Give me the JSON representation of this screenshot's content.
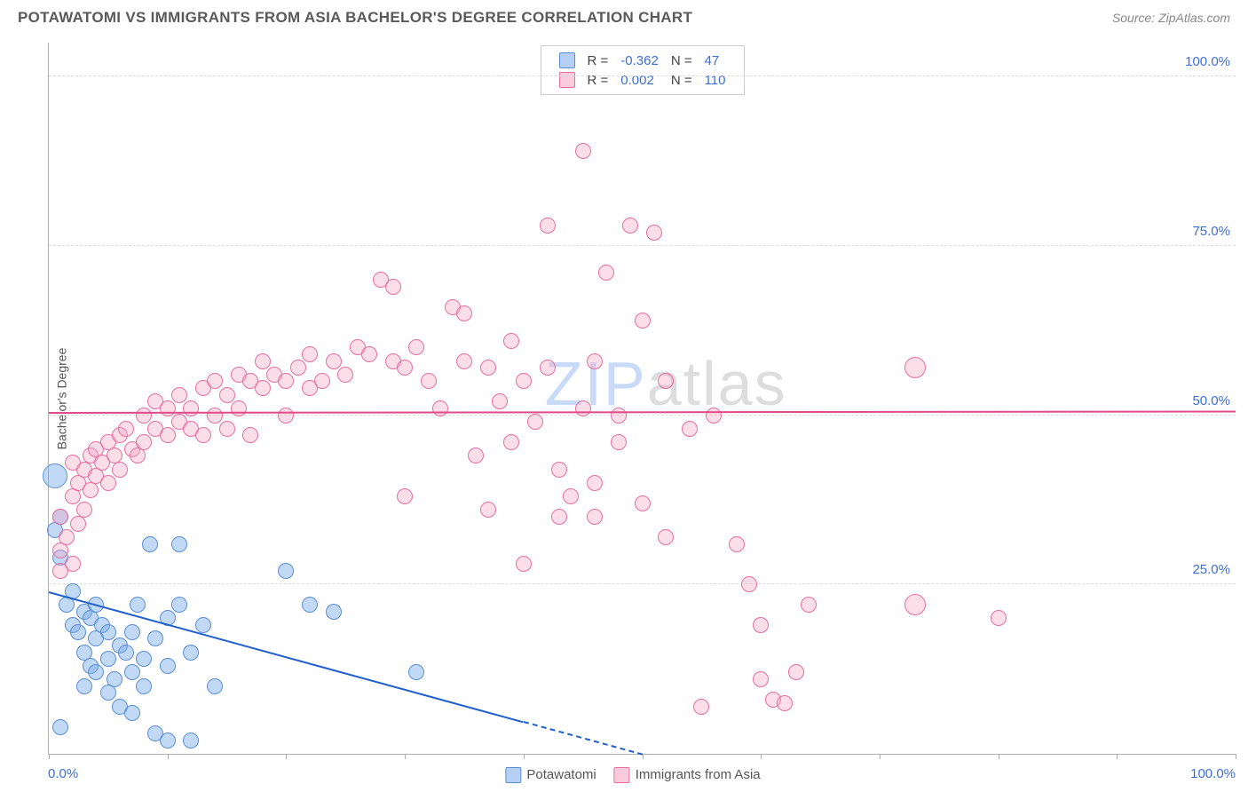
{
  "title": "POTAWATOMI VS IMMIGRANTS FROM ASIA BACHELOR'S DEGREE CORRELATION CHART",
  "source_label": "Source: ZipAtlas.com",
  "watermark": {
    "first": "ZIP",
    "rest": "atlas"
  },
  "y_axis_title": "Bachelor's Degree",
  "chart": {
    "type": "scatter",
    "xlim": [
      0,
      100
    ],
    "ylim": [
      0,
      105
    ],
    "x_tick_step": 10,
    "y_gridlines": [
      25,
      50,
      75,
      100
    ],
    "y_tick_labels": [
      "25.0%",
      "50.0%",
      "75.0%",
      "100.0%"
    ],
    "x_label_min": "0.0%",
    "x_label_max": "100.0%",
    "background_color": "#ffffff",
    "grid_color": "#dcdcdc",
    "axis_color": "#b0b0b0",
    "label_color": "#3b6fd8",
    "marker_radius": 9,
    "marker_radius_large": 14
  },
  "series": [
    {
      "name": "Potawatomi",
      "color_fill": "rgba(120,170,235,0.45)",
      "color_stroke": "#5a8fd6",
      "trend_color": "#1f5fd0",
      "trend": {
        "x1": 0,
        "y1": 24,
        "x2": 50,
        "y2": 0,
        "dashed_after_x": 40
      },
      "R": "-0.362",
      "N": "47",
      "points": [
        {
          "x": 0.5,
          "y": 41,
          "r": 14
        },
        {
          "x": 0.5,
          "y": 33
        },
        {
          "x": 1,
          "y": 35
        },
        {
          "x": 1,
          "y": 29
        },
        {
          "x": 1,
          "y": 4
        },
        {
          "x": 1.5,
          "y": 22
        },
        {
          "x": 2,
          "y": 19
        },
        {
          "x": 2,
          "y": 24
        },
        {
          "x": 2.5,
          "y": 18
        },
        {
          "x": 3,
          "y": 21
        },
        {
          "x": 3,
          "y": 15
        },
        {
          "x": 3,
          "y": 10
        },
        {
          "x": 3.5,
          "y": 20
        },
        {
          "x": 3.5,
          "y": 13
        },
        {
          "x": 4,
          "y": 22
        },
        {
          "x": 4,
          "y": 17
        },
        {
          "x": 4,
          "y": 12
        },
        {
          "x": 4.5,
          "y": 19
        },
        {
          "x": 5,
          "y": 14
        },
        {
          "x": 5,
          "y": 18
        },
        {
          "x": 5,
          "y": 9
        },
        {
          "x": 5.5,
          "y": 11
        },
        {
          "x": 6,
          "y": 16
        },
        {
          "x": 6,
          "y": 7
        },
        {
          "x": 6.5,
          "y": 15
        },
        {
          "x": 7,
          "y": 18
        },
        {
          "x": 7,
          "y": 12
        },
        {
          "x": 7,
          "y": 6
        },
        {
          "x": 7.5,
          "y": 22
        },
        {
          "x": 8,
          "y": 10
        },
        {
          "x": 8,
          "y": 14
        },
        {
          "x": 8.5,
          "y": 31
        },
        {
          "x": 9,
          "y": 17
        },
        {
          "x": 9,
          "y": 3
        },
        {
          "x": 10,
          "y": 20
        },
        {
          "x": 10,
          "y": 13
        },
        {
          "x": 10,
          "y": 2
        },
        {
          "x": 11,
          "y": 22
        },
        {
          "x": 11,
          "y": 31
        },
        {
          "x": 12,
          "y": 15
        },
        {
          "x": 12,
          "y": 2
        },
        {
          "x": 13,
          "y": 19
        },
        {
          "x": 14,
          "y": 10
        },
        {
          "x": 20,
          "y": 27
        },
        {
          "x": 22,
          "y": 22
        },
        {
          "x": 24,
          "y": 21
        },
        {
          "x": 31,
          "y": 12
        }
      ]
    },
    {
      "name": "Immigrants from Asia",
      "color_fill": "rgba(245,160,190,0.35)",
      "color_stroke": "#e76fa0",
      "trend_color": "#e04a88",
      "trend": {
        "x1": 0,
        "y1": 50.5,
        "x2": 100,
        "y2": 50.7
      },
      "R": "0.002",
      "N": "110",
      "points": [
        {
          "x": 1,
          "y": 30
        },
        {
          "x": 1,
          "y": 35
        },
        {
          "x": 1.5,
          "y": 32
        },
        {
          "x": 2,
          "y": 28
        },
        {
          "x": 2,
          "y": 38
        },
        {
          "x": 2.5,
          "y": 40
        },
        {
          "x": 2.5,
          "y": 34
        },
        {
          "x": 3,
          "y": 42
        },
        {
          "x": 3,
          "y": 36
        },
        {
          "x": 3.5,
          "y": 44
        },
        {
          "x": 3.5,
          "y": 39
        },
        {
          "x": 4,
          "y": 41
        },
        {
          "x": 4,
          "y": 45
        },
        {
          "x": 4.5,
          "y": 43
        },
        {
          "x": 5,
          "y": 46
        },
        {
          "x": 5,
          "y": 40
        },
        {
          "x": 5.5,
          "y": 44
        },
        {
          "x": 6,
          "y": 47
        },
        {
          "x": 6,
          "y": 42
        },
        {
          "x": 6.5,
          "y": 48
        },
        {
          "x": 7,
          "y": 45
        },
        {
          "x": 7.5,
          "y": 44
        },
        {
          "x": 8,
          "y": 50
        },
        {
          "x": 8,
          "y": 46
        },
        {
          "x": 9,
          "y": 48
        },
        {
          "x": 9,
          "y": 52
        },
        {
          "x": 10,
          "y": 47
        },
        {
          "x": 10,
          "y": 51
        },
        {
          "x": 11,
          "y": 49
        },
        {
          "x": 11,
          "y": 53
        },
        {
          "x": 12,
          "y": 48
        },
        {
          "x": 12,
          "y": 51
        },
        {
          "x": 13,
          "y": 54
        },
        {
          "x": 13,
          "y": 47
        },
        {
          "x": 14,
          "y": 55
        },
        {
          "x": 14,
          "y": 50
        },
        {
          "x": 15,
          "y": 53
        },
        {
          "x": 15,
          "y": 48
        },
        {
          "x": 16,
          "y": 56
        },
        {
          "x": 16,
          "y": 51
        },
        {
          "x": 17,
          "y": 55
        },
        {
          "x": 17,
          "y": 47
        },
        {
          "x": 18,
          "y": 54
        },
        {
          "x": 18,
          "y": 58
        },
        {
          "x": 19,
          "y": 56
        },
        {
          "x": 20,
          "y": 55
        },
        {
          "x": 20,
          "y": 50
        },
        {
          "x": 21,
          "y": 57
        },
        {
          "x": 22,
          "y": 54
        },
        {
          "x": 22,
          "y": 59
        },
        {
          "x": 23,
          "y": 55
        },
        {
          "x": 24,
          "y": 58
        },
        {
          "x": 25,
          "y": 56
        },
        {
          "x": 26,
          "y": 60
        },
        {
          "x": 27,
          "y": 59
        },
        {
          "x": 28,
          "y": 70
        },
        {
          "x": 29,
          "y": 58
        },
        {
          "x": 29,
          "y": 69
        },
        {
          "x": 30,
          "y": 57
        },
        {
          "x": 30,
          "y": 38
        },
        {
          "x": 31,
          "y": 60
        },
        {
          "x": 32,
          "y": 55
        },
        {
          "x": 33,
          "y": 51
        },
        {
          "x": 34,
          "y": 66
        },
        {
          "x": 35,
          "y": 58
        },
        {
          "x": 35,
          "y": 65
        },
        {
          "x": 36,
          "y": 44
        },
        {
          "x": 37,
          "y": 57
        },
        {
          "x": 38,
          "y": 52
        },
        {
          "x": 39,
          "y": 61
        },
        {
          "x": 39,
          "y": 46
        },
        {
          "x": 40,
          "y": 28
        },
        {
          "x": 40,
          "y": 55
        },
        {
          "x": 41,
          "y": 49
        },
        {
          "x": 42,
          "y": 78
        },
        {
          "x": 42,
          "y": 57
        },
        {
          "x": 43,
          "y": 42
        },
        {
          "x": 43,
          "y": 35
        },
        {
          "x": 44,
          "y": 38
        },
        {
          "x": 45,
          "y": 89
        },
        {
          "x": 45,
          "y": 51
        },
        {
          "x": 46,
          "y": 58
        },
        {
          "x": 46,
          "y": 40
        },
        {
          "x": 47,
          "y": 71
        },
        {
          "x": 48,
          "y": 50
        },
        {
          "x": 48,
          "y": 46
        },
        {
          "x": 49,
          "y": 78
        },
        {
          "x": 50,
          "y": 37
        },
        {
          "x": 50,
          "y": 64
        },
        {
          "x": 51,
          "y": 77
        },
        {
          "x": 52,
          "y": 55
        },
        {
          "x": 52,
          "y": 32
        },
        {
          "x": 54,
          "y": 48
        },
        {
          "x": 55,
          "y": 7
        },
        {
          "x": 56,
          "y": 50
        },
        {
          "x": 58,
          "y": 31
        },
        {
          "x": 59,
          "y": 25
        },
        {
          "x": 60,
          "y": 19
        },
        {
          "x": 60,
          "y": 11
        },
        {
          "x": 61,
          "y": 8
        },
        {
          "x": 62,
          "y": 7.5
        },
        {
          "x": 63,
          "y": 12
        },
        {
          "x": 64,
          "y": 22
        },
        {
          "x": 73,
          "y": 57,
          "r": 12
        },
        {
          "x": 73,
          "y": 22,
          "r": 12
        },
        {
          "x": 80,
          "y": 20
        },
        {
          "x": 1,
          "y": 27
        },
        {
          "x": 2,
          "y": 43
        },
        {
          "x": 37,
          "y": 36
        },
        {
          "x": 46,
          "y": 35
        }
      ]
    }
  ],
  "legend_top": {
    "rows": [
      {
        "swatch": "blue",
        "R_label": "R =",
        "R": "-0.362",
        "N_label": "N =",
        "N": "47"
      },
      {
        "swatch": "pink",
        "R_label": "R =",
        "R": "0.002",
        "N_label": "N =",
        "N": "110"
      }
    ]
  },
  "legend_bottom": {
    "items": [
      {
        "swatch": "blue",
        "label": "Potawatomi"
      },
      {
        "swatch": "pink",
        "label": "Immigrants from Asia"
      }
    ]
  }
}
